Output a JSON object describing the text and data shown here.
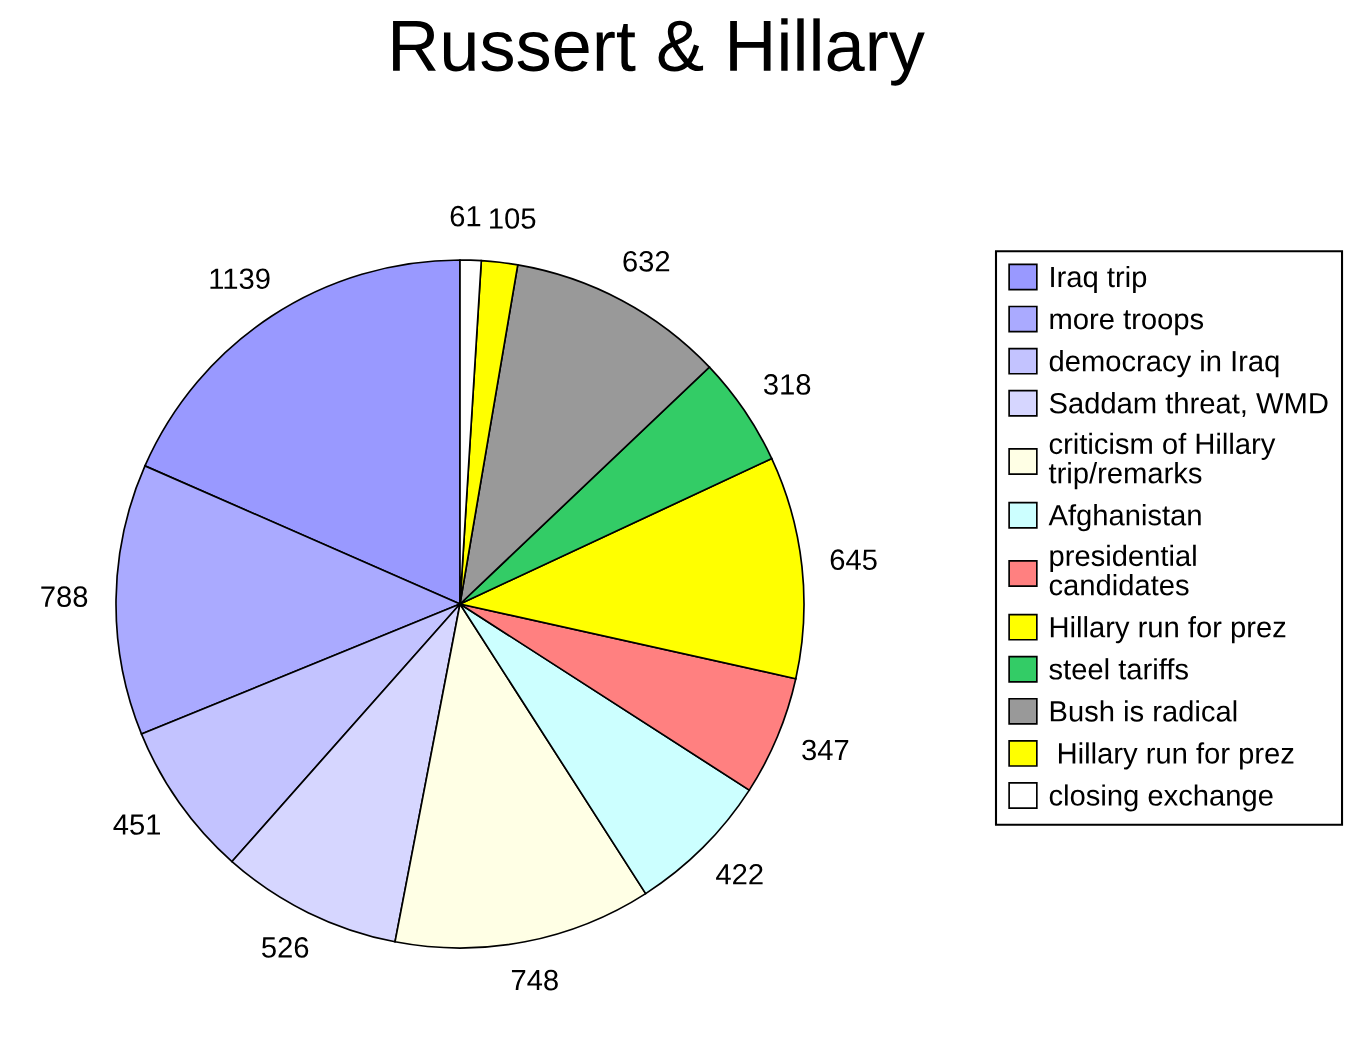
{
  "chart_data": {
    "type": "pie",
    "title": "Russert & Hillary",
    "categories": [
      "Iraq trip",
      "more troops",
      "democracy in Iraq",
      "Saddam threat, WMD",
      "criticism of Hillary trip/remarks",
      "Afghanistan",
      "presidential candidates",
      "Hillary run for prez",
      "steel tariffs",
      "Bush is radical",
      " Hillary run for prez",
      "closing exchange"
    ],
    "values": [
      1139,
      788,
      451,
      526,
      748,
      422,
      347,
      645,
      318,
      632,
      105,
      61
    ],
    "colors": [
      "#9999ff",
      "#aaaaff",
      "#c3c3ff",
      "#d6d6ff",
      "#ffffe5",
      "#ccffff",
      "#ff8080",
      "#ffff00",
      "#33cc66",
      "#999999",
      "#ffff00",
      "#ffffff"
    ],
    "data_labels": true,
    "legend": "right"
  }
}
